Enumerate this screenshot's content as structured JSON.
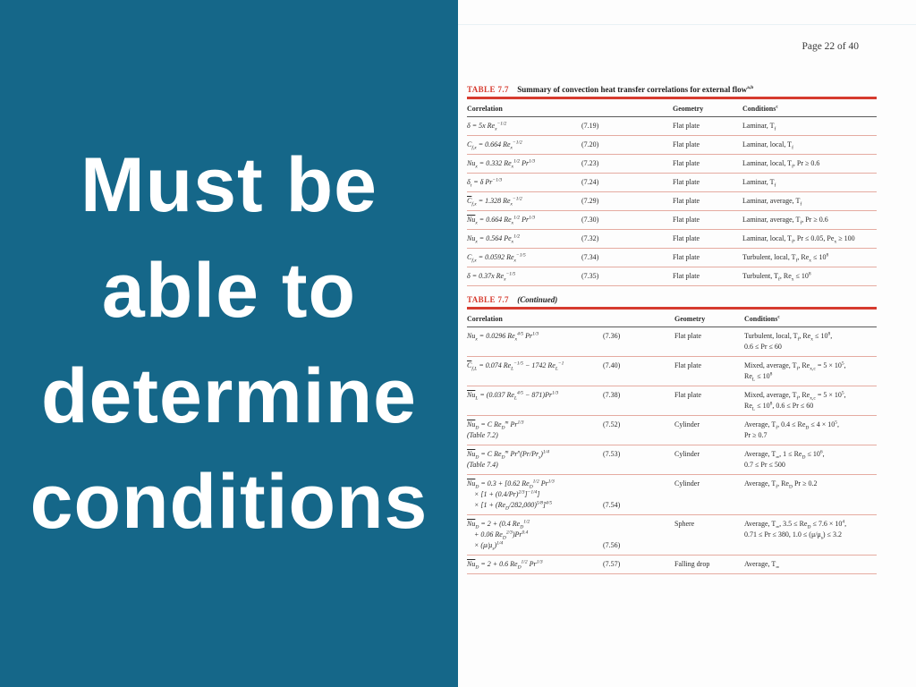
{
  "slide": {
    "lines": [
      "Must be",
      "able to",
      "determine",
      "conditions"
    ]
  },
  "page": {
    "label": "Page 22 of 40"
  },
  "colors": {
    "panel_teal": "#156789",
    "accent_red": "#d63b2f",
    "row_rule_pink": "#e5aba1",
    "header_rule_dark": "#5a5a5a",
    "slide_text": "#ffffff",
    "page_background": "#fdfdfd"
  },
  "tables": [
    {
      "label": "TABLE 7.7",
      "title": "Summary of convection heat transfer correlations for external flow^{a,b}",
      "headers": [
        "Correlation",
        "Geometry",
        "Conditions^{c}"
      ],
      "rows": [
        {
          "eq": "δ = 5x Re_{x}^{−1/2}",
          "num": "(7.19)",
          "geometry": "Flat plate",
          "conditions": "Laminar, T_{f}"
        },
        {
          "eq": "C_{f,x} = 0.664 Re_{x}^{−1/2}",
          "num": "(7.20)",
          "geometry": "Flat plate",
          "conditions": "Laminar, local, T_{f}"
        },
        {
          "eq": "Nu_{x} = 0.332 Re_{x}^{1/2} Pr^{1/3}",
          "num": "(7.23)",
          "geometry": "Flat plate",
          "conditions": "Laminar, local, T_{f}, Pr ≥ 0.6"
        },
        {
          "eq": "δ_{t} = δ Pr^{−1/3}",
          "num": "(7.24)",
          "geometry": "Flat plate",
          "conditions": "Laminar, T_{f}"
        },
        {
          "eq": "~{C}_{f,x} = 1.328 Re_{x}^{−1/2}",
          "num": "(7.29)",
          "geometry": "Flat plate",
          "conditions": "Laminar, average, T_{f}"
        },
        {
          "eq": "~{Nu}_{x} = 0.664 Re_{x}^{1/2} Pr^{1/3}",
          "num": "(7.30)",
          "geometry": "Flat plate",
          "conditions": "Laminar, average, T_{f}, Pr ≥ 0.6"
        },
        {
          "eq": "Nu_{x} = 0.564 Pe_{x}^{1/2}",
          "num": "(7.32)",
          "geometry": "Flat plate",
          "conditions": "Laminar, local, T_{f}, Pr ≤ 0.05, Pe_{x} ≥ 100"
        },
        {
          "eq": "C_{f,x} = 0.0592 Re_{x}^{−1/5}",
          "num": "(7.34)",
          "geometry": "Flat plate",
          "conditions": "Turbulent, local, T_{f}, Re_{x} ≤ 10^{8}"
        },
        {
          "eq": "δ = 0.37x Re_{x}^{−1/5}",
          "num": "(7.35)",
          "geometry": "Flat plate",
          "conditions": "Turbulent, T_{f}, Re_{x} ≤ 10^{8}"
        }
      ]
    },
    {
      "label": "TABLE 7.7",
      "title": "(Continued)",
      "headers": [
        "Correlation",
        "Geometry",
        "Conditions^{c}"
      ],
      "rows": [
        {
          "eq": "Nu_{x} = 0.0296 Re_{x}^{4/5} Pr^{1/3}",
          "num": "(7.36)",
          "geometry": "Flat plate",
          "conditions": "Turbulent, local, T_{f}, Re_{x} ≤ 10^{8},\n0.6 ≤ Pr ≤ 60"
        },
        {
          "eq": "~{C}_{f,L} = 0.074 Re_{L}^{−1/5} − 1742 Re_{L}^{−1}",
          "num": "(7.40)",
          "geometry": "Flat plate",
          "conditions": "Mixed, average, T_{f}, Re_{x,c} = 5 × 10^{5},\nRe_{L} ≤ 10^{8}"
        },
        {
          "eq": "~{Nu}_{L} = (0.037 Re_{L}^{4/5} − 871)Pr^{1/3}",
          "num": "(7.38)",
          "geometry": "Flat plate",
          "conditions": "Mixed, average, T_{f}, Re_{x,c} = 5 × 10^{5},\nRe_{L} ≤ 10^{8}, 0.6 ≤ Pr ≤ 60"
        },
        {
          "eq": "~{Nu}_{D} = C Re_{D}^{m} Pr^{1/3}\n(Table 7.2)",
          "num": "(7.52)",
          "geometry": "Cylinder",
          "conditions": "Average, T_{f}, 0.4 ≤ Re_{D} ≤ 4 × 10^{5},\nPr ≥ 0.7"
        },
        {
          "eq": "~{Nu}_{D} = C Re_{D}^{m} Pr^{n}(Pr/Pr_{s})^{1/4}\n(Table 7.4)",
          "num": "(7.53)",
          "geometry": "Cylinder",
          "conditions": "Average, T_{∞}, 1 ≤ Re_{D} ≤ 10^{6},\n0.7 ≤ Pr ≤ 500"
        },
        {
          "eq": "~{Nu}_{D} = 0.3 + [0.62 Re_{D}^{1/2} Pr^{1/3}\n    × [1 + (0.4/Pr)^{2/3}]^{−1/4}]\n    × [1 + (Re_{D}/282,000)^{5/8}]^{4/5}",
          "num": "(7.54)",
          "num_bottom": true,
          "geometry": "Cylinder",
          "conditions": "Average, T_{f}, Re_{D} Pr ≥ 0.2"
        },
        {
          "eq": "~{Nu}_{D} = 2 + (0.4 Re_{D}^{1/2}\n    + 0.06 Re_{D}^{2/3})Pr^{0.4}\n    × (μ/μ_{s})^{1/4}",
          "num": "(7.56)",
          "num_bottom": true,
          "geometry": "Sphere",
          "conditions": "Average, T_{∞}, 3.5 ≤ Re_{D} ≤ 7.6 × 10^{4},\n0.71 ≤ Pr ≤ 380, 1.0 ≤ (μ/μ_{s}) ≤ 3.2"
        },
        {
          "eq": "~{Nu}_{D} = 2 + 0.6 Re_{D}^{1/2} Pr^{1/3}",
          "num": "(7.57)",
          "geometry": "Falling drop",
          "conditions": "Average, T_{∞}"
        }
      ]
    }
  ]
}
